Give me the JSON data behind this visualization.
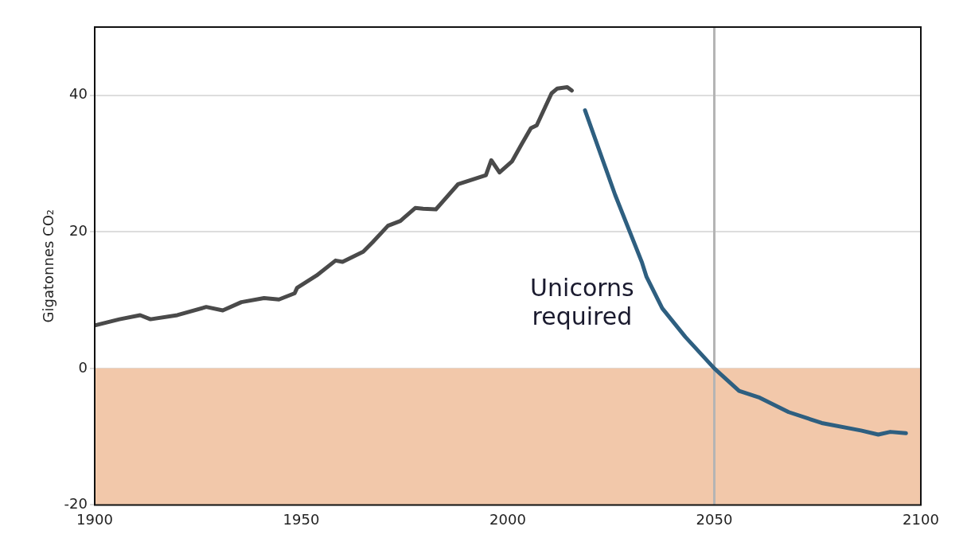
{
  "chart_data": {
    "type": "line",
    "ylabel": "Gigatonnes CO₂",
    "xlim": [
      1900,
      2100
    ],
    "xticks": [
      1900,
      1950,
      2000,
      2050,
      2100
    ],
    "ylim": [
      -20,
      50
    ],
    "yticks": [
      -20,
      0,
      20,
      40
    ],
    "grid": "y",
    "legend": false,
    "marker": "none",
    "line_style": "solid",
    "series": [
      {
        "color": "#4a4a4a",
        "x": [
          1900,
          1906,
          1911,
          1913.5,
          1920,
          1927,
          1931,
          1935.5,
          1941,
          1944.6,
          1948.4,
          1949,
          1953.7,
          1958.3,
          1960,
          1965,
          1967.3,
          1971,
          1974,
          1977.6,
          1979.5,
          1982.6,
          1988,
          1994.7,
          1996,
          1998,
          2001,
          2003.4,
          2005.6,
          2007,
          2010.6,
          2012,
          2014.4,
          2015.5
        ],
        "values": [
          6.3,
          7.2,
          7.8,
          7.2,
          7.8,
          9.0,
          8.5,
          9.7,
          10.3,
          10.1,
          11.0,
          11.8,
          13.6,
          15.8,
          15.6,
          17.1,
          18.5,
          20.9,
          21.6,
          23.5,
          23.4,
          23.3,
          27.0,
          28.3,
          30.5,
          28.7,
          30.3,
          32.9,
          35.2,
          35.6,
          40.3,
          41.0,
          41.2,
          40.7
        ]
      },
      {
        "color": "#2e5f80",
        "x": [
          2018.7,
          2026,
          2032.5,
          2033.6,
          2037.4,
          2043,
          2050,
          2056,
          2061,
          2068,
          2076,
          2085.5,
          2089.7,
          2092.6,
          2096.4
        ],
        "values": [
          37.8,
          25.4,
          15.5,
          13.4,
          8.8,
          4.6,
          0,
          -3.3,
          -4.3,
          -6.4,
          -8.0,
          -9.1,
          -9.7,
          -9.3,
          -9.5
        ]
      }
    ],
    "bands": [
      {
        "axis": "y",
        "from": -20,
        "to": 0,
        "color": "#f2c8aa"
      }
    ],
    "ref_lines": [
      {
        "axis": "x",
        "value": 2050,
        "color": "#b4b4b4",
        "line_style": "solid"
      }
    ],
    "annotations": [
      "Unicorns\nrequired"
    ]
  }
}
